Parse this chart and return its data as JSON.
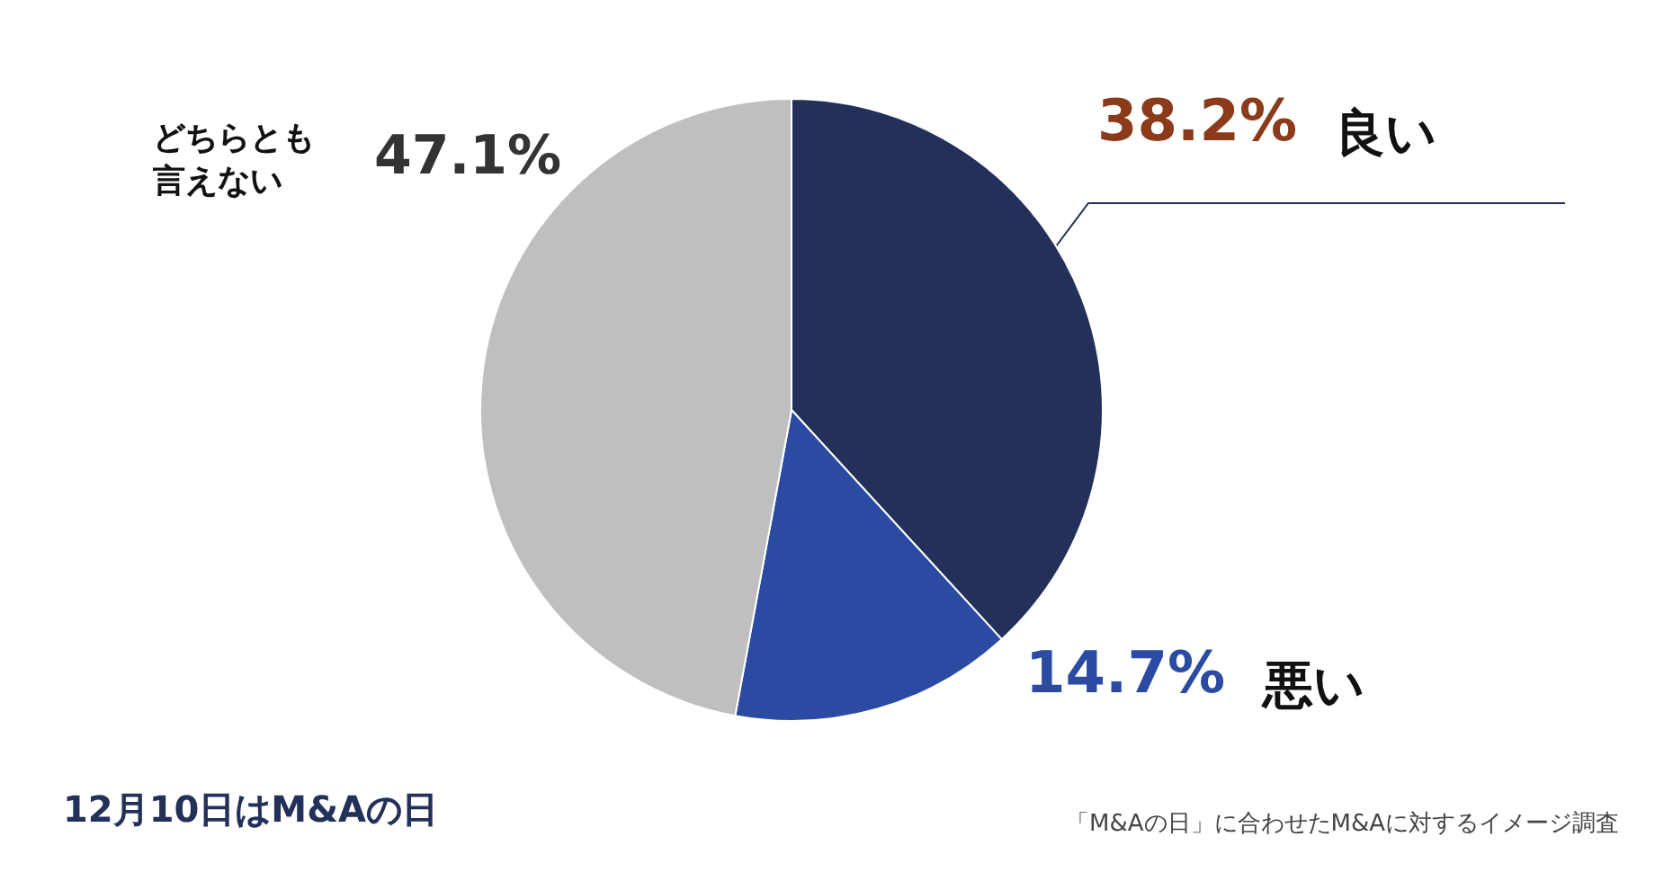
{
  "chart_data": {
    "type": "pie",
    "categories": [
      "良い",
      "悪い",
      "どちらとも言えない"
    ],
    "values": [
      38.2,
      14.7,
      47.1
    ],
    "value_labels": [
      "38.2%",
      "14.7%",
      "47.1%"
    ],
    "colors": [
      "#22305a",
      "#2b4ba3",
      "#bfbfbf"
    ],
    "legend": false,
    "annotations": [
      "12月10日はM&Aの日",
      "「M&Aの日」に合わせたM&Aに対するイメージ調査"
    ]
  }
}
